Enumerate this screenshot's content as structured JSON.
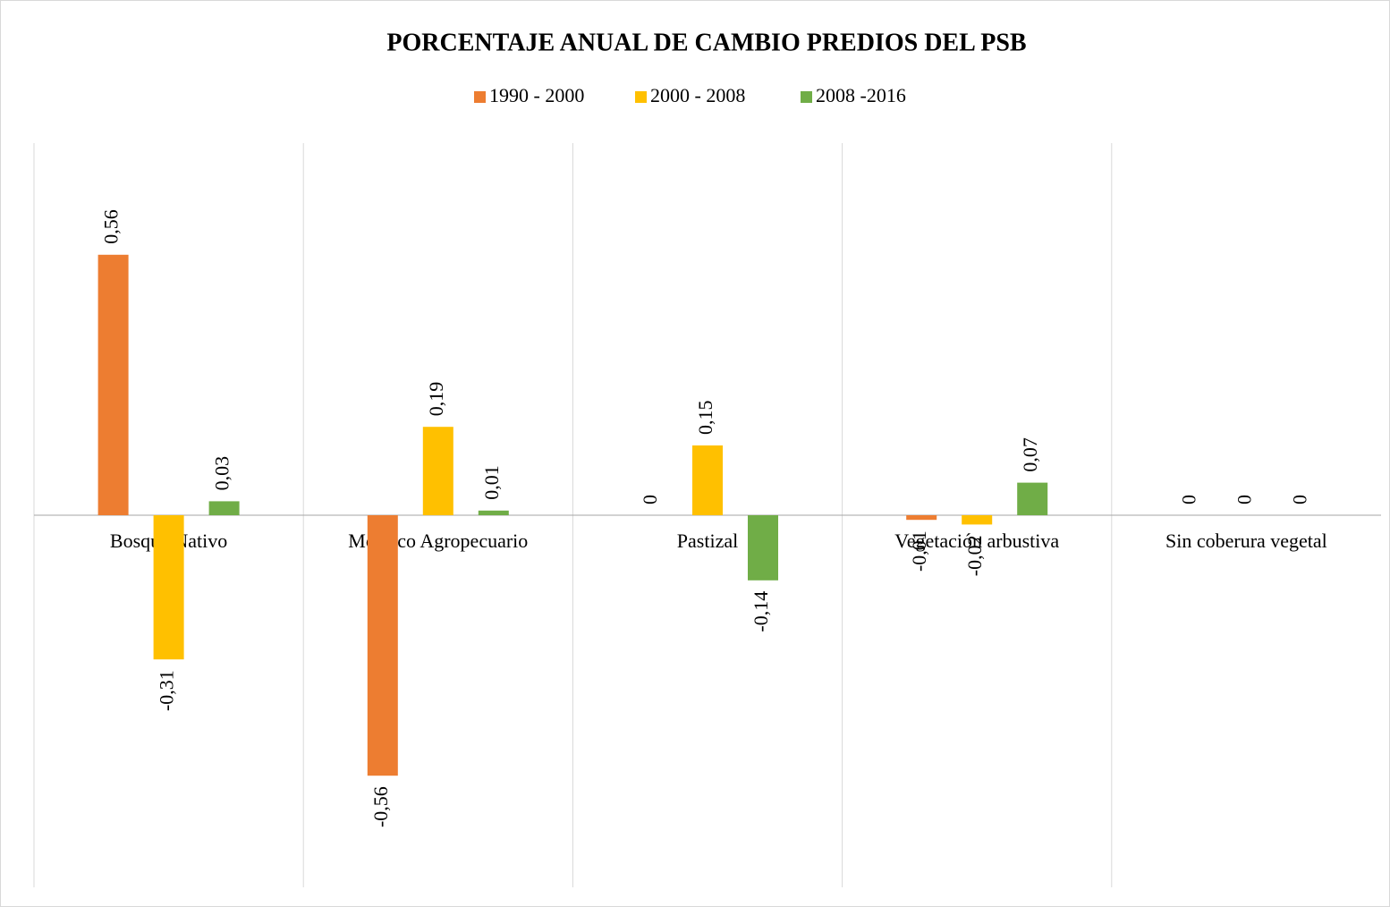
{
  "chart_data": {
    "type": "bar",
    "title": "PORCENTAJE ANUAL DE CAMBIO PREDIOS DEL PSB",
    "categories": [
      "Bosque Nativo",
      "Mosaico Agropecuario",
      "Pastizal",
      "Vegetación arbustiva",
      "Sin coberura vegetal"
    ],
    "series": [
      {
        "name": "1990 - 2000",
        "color": "#ed7d31",
        "values": [
          0.56,
          -0.56,
          0,
          -0.01,
          0
        ],
        "value_labels": [
          "0,56",
          "-0,56",
          "0",
          "-0,01",
          "0"
        ]
      },
      {
        "name": "2000 - 2008",
        "color": "#ffc000",
        "values": [
          -0.31,
          0.19,
          0.15,
          -0.02,
          0
        ],
        "value_labels": [
          "-0,31",
          "0,19",
          "0,15",
          "-0,02",
          "0"
        ]
      },
      {
        "name": "2008 -2016",
        "color": "#70ad47",
        "values": [
          0.03,
          0.01,
          -0.14,
          0.07,
          0
        ],
        "value_labels": [
          "0,03",
          "0,01",
          "-0,14",
          "0,07",
          "0"
        ]
      }
    ],
    "ylim": [
      -0.8,
      0.8
    ],
    "legend": "top"
  }
}
